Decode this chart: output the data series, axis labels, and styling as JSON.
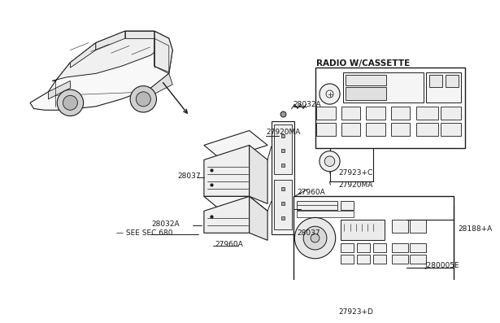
{
  "bg_color": "#ffffff",
  "line_color": "#1a1a1a",
  "text_color": "#1a1a1a",
  "font_size": 6.5,
  "font_family": "DejaVu Sans",
  "labels": {
    "28032A_top": [
      0.497,
      0.138,
      "28032A"
    ],
    "27920MA_top": [
      0.362,
      0.218,
      "27920MA"
    ],
    "28037_left": [
      0.228,
      0.345,
      "28037"
    ],
    "28032A_bot": [
      0.196,
      0.455,
      "28032A"
    ],
    "28037_mid": [
      0.408,
      0.452,
      "28037"
    ],
    "27960A_right": [
      0.488,
      0.398,
      "27960A"
    ],
    "see_sec": [
      0.228,
      0.518,
      "SEE SEC.680"
    ],
    "27960A_bot": [
      0.322,
      0.562,
      "27960A"
    ],
    "radio_title": [
      0.584,
      0.075,
      "RADIO W/CASSETTE"
    ],
    "27923C": [
      0.598,
      0.422,
      "27923+C"
    ],
    "27920MA_r": [
      0.618,
      0.492,
      "27920MA"
    ],
    "28188A": [
      0.845,
      0.648,
      "28188+A"
    ],
    "27923D": [
      0.596,
      0.822,
      "27923+D"
    ],
    "J280005E": [
      0.838,
      0.948,
      "J280005E"
    ]
  }
}
